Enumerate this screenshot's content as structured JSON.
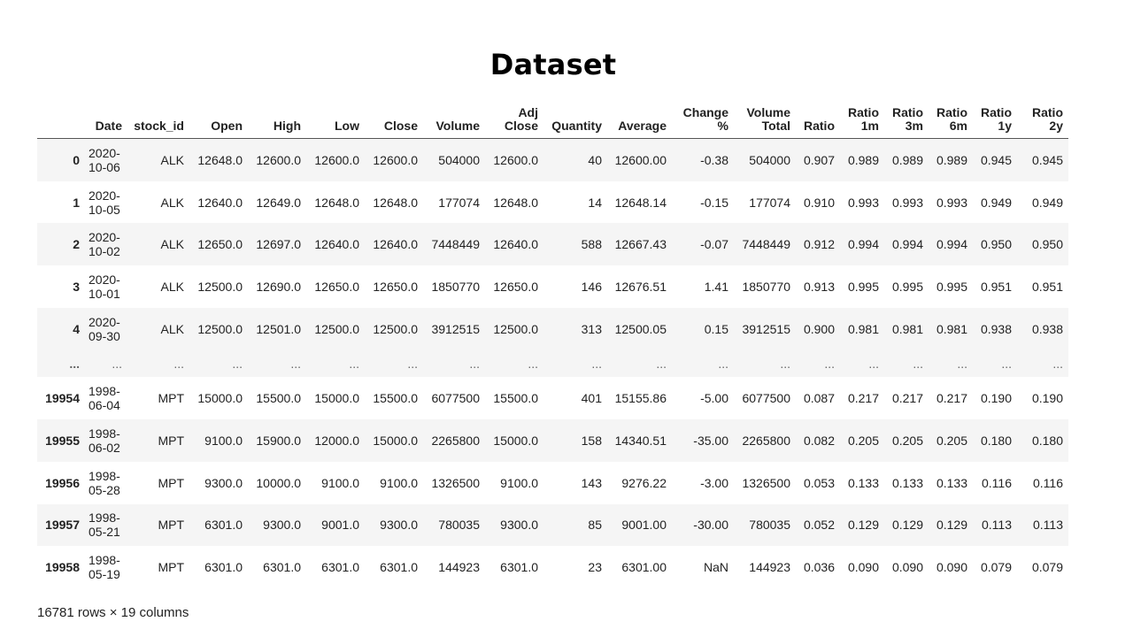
{
  "title": "Dataset",
  "table": {
    "columns": [
      "",
      "Date",
      "stock_id",
      "Open",
      "High",
      "Low",
      "Close",
      "Volume",
      "Adj\nClose",
      "Quantity",
      "Average",
      "Change\n%",
      "Volume\nTotal",
      "Ratio",
      "Ratio\n1m",
      "Ratio\n3m",
      "Ratio\n6m",
      "Ratio\n1y",
      "Ratio\n2y"
    ],
    "rows": [
      [
        "0",
        "2020-\n10-06",
        "ALK",
        "12648.0",
        "12600.0",
        "12600.0",
        "12600.0",
        "504000",
        "12600.0",
        "40",
        "12600.00",
        "-0.38",
        "504000",
        "0.907",
        "0.989",
        "0.989",
        "0.989",
        "0.945",
        "0.945"
      ],
      [
        "1",
        "2020-\n10-05",
        "ALK",
        "12640.0",
        "12649.0",
        "12648.0",
        "12648.0",
        "177074",
        "12648.0",
        "14",
        "12648.14",
        "-0.15",
        "177074",
        "0.910",
        "0.993",
        "0.993",
        "0.993",
        "0.949",
        "0.949"
      ],
      [
        "2",
        "2020-\n10-02",
        "ALK",
        "12650.0",
        "12697.0",
        "12640.0",
        "12640.0",
        "7448449",
        "12640.0",
        "588",
        "12667.43",
        "-0.07",
        "7448449",
        "0.912",
        "0.994",
        "0.994",
        "0.994",
        "0.950",
        "0.950"
      ],
      [
        "3",
        "2020-\n10-01",
        "ALK",
        "12500.0",
        "12690.0",
        "12650.0",
        "12650.0",
        "1850770",
        "12650.0",
        "146",
        "12676.51",
        "1.41",
        "1850770",
        "0.913",
        "0.995",
        "0.995",
        "0.995",
        "0.951",
        "0.951"
      ],
      [
        "4",
        "2020-\n09-30",
        "ALK",
        "12500.0",
        "12501.0",
        "12500.0",
        "12500.0",
        "3912515",
        "12500.0",
        "313",
        "12500.05",
        "0.15",
        "3912515",
        "0.900",
        "0.981",
        "0.981",
        "0.981",
        "0.938",
        "0.938"
      ],
      [
        "...",
        "...",
        "...",
        "...",
        "...",
        "...",
        "...",
        "...",
        "...",
        "...",
        "...",
        "...",
        "...",
        "...",
        "...",
        "...",
        "...",
        "...",
        "..."
      ],
      [
        "19954",
        "1998-\n06-04",
        "MPT",
        "15000.0",
        "15500.0",
        "15000.0",
        "15500.0",
        "6077500",
        "15500.0",
        "401",
        "15155.86",
        "-5.00",
        "6077500",
        "0.087",
        "0.217",
        "0.217",
        "0.217",
        "0.190",
        "0.190"
      ],
      [
        "19955",
        "1998-\n06-02",
        "MPT",
        "9100.0",
        "15900.0",
        "12000.0",
        "15000.0",
        "2265800",
        "15000.0",
        "158",
        "14340.51",
        "-35.00",
        "2265800",
        "0.082",
        "0.205",
        "0.205",
        "0.205",
        "0.180",
        "0.180"
      ],
      [
        "19956",
        "1998-\n05-28",
        "MPT",
        "9300.0",
        "10000.0",
        "9100.0",
        "9100.0",
        "1326500",
        "9100.0",
        "143",
        "9276.22",
        "-3.00",
        "1326500",
        "0.053",
        "0.133",
        "0.133",
        "0.133",
        "0.116",
        "0.116"
      ],
      [
        "19957",
        "1998-\n05-21",
        "MPT",
        "6301.0",
        "9300.0",
        "9001.0",
        "9300.0",
        "780035",
        "9300.0",
        "85",
        "9001.00",
        "-30.00",
        "780035",
        "0.052",
        "0.129",
        "0.129",
        "0.129",
        "0.113",
        "0.113"
      ],
      [
        "19958",
        "1998-\n05-19",
        "MPT",
        "6301.0",
        "6301.0",
        "6301.0",
        "6301.0",
        "144923",
        "6301.0",
        "23",
        "6301.00",
        "NaN",
        "144923",
        "0.036",
        "0.090",
        "0.090",
        "0.090",
        "0.079",
        "0.079"
      ]
    ]
  },
  "footer": "16781 rows × 19 columns"
}
